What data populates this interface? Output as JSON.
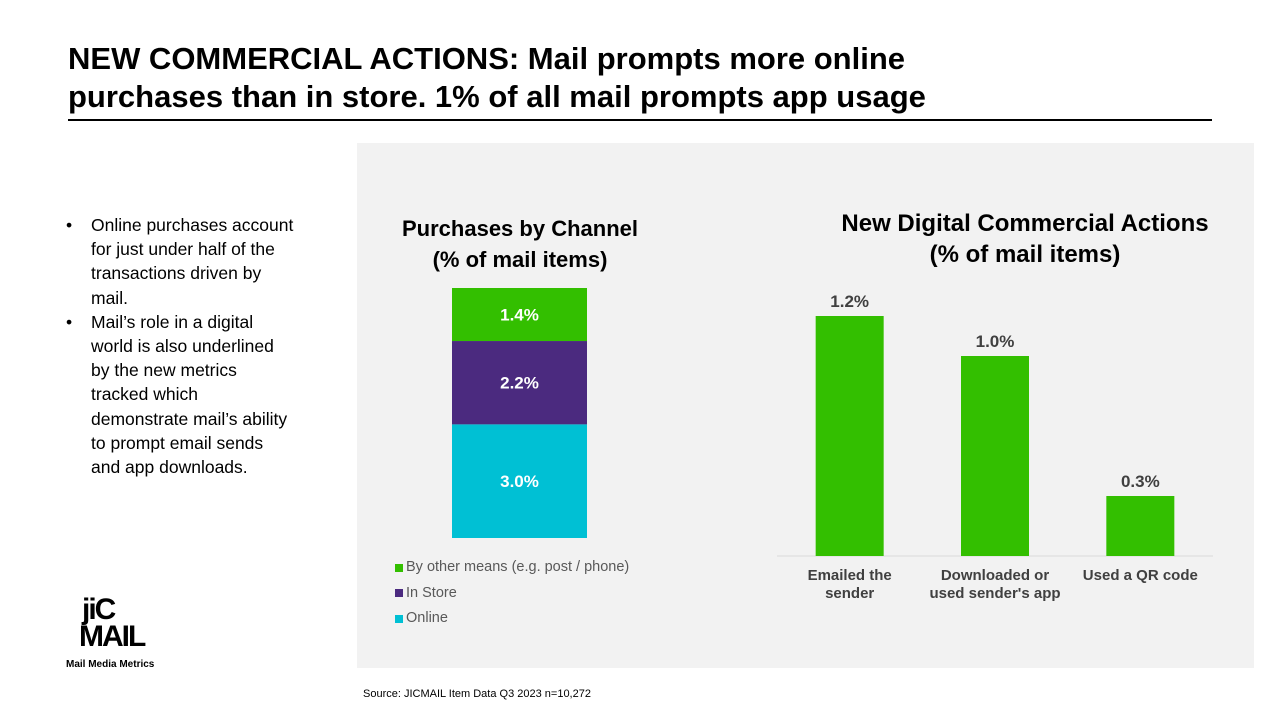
{
  "slide": {
    "title_line1": "NEW COMMERCIAL ACTIONS: Mail prompts more online",
    "title_line2": "purchases than in store. 1% of all mail prompts app usage",
    "bullets": [
      "Online purchases account for just under half of the transactions driven by mail.",
      "Mail’s role in a digital world is also underlined by the new metrics tracked which demonstrate mail’s ability to prompt email sends and app downloads."
    ],
    "bullet_glyph": "•",
    "source": "Source: JICMAIL Item Data Q3 2023 n=10,272"
  },
  "logo": {
    "line1": "jiC",
    "line2": "MAIL",
    "tagline": "Mail Media Metrics"
  },
  "colors": {
    "panel": "#f2f2f2",
    "green": "#33bf00",
    "purple": "#4b2a7f",
    "cyan": "#00c0d4"
  },
  "chart_data": [
    {
      "type": "bar",
      "stacked": true,
      "title_line1": "Purchases by Channel",
      "title_line2": "(% of mail items)",
      "categories": [
        ""
      ],
      "series": [
        {
          "name": "Online",
          "values": [
            3.0
          ],
          "label": "3.0%",
          "color": "#00c0d4"
        },
        {
          "name": "In Store",
          "values": [
            2.2
          ],
          "label": "2.2%",
          "color": "#4b2a7f"
        },
        {
          "name": "By other means (e.g. post / phone)",
          "values": [
            1.4
          ],
          "label": "1.4%",
          "color": "#33bf00"
        }
      ],
      "legend_order": [
        "By other means (e.g. post / phone)",
        "In Store",
        "Online"
      ],
      "legend_position": "bottom",
      "ylim": [
        0,
        6.6
      ],
      "grid": false
    },
    {
      "type": "bar",
      "title_line1": "New Digital Commercial Actions",
      "title_line2": "(% of mail items)",
      "categories": [
        [
          "Emailed the",
          "sender"
        ],
        [
          "Downloaded or",
          "used sender's app"
        ],
        [
          "Used a QR code"
        ]
      ],
      "values": [
        1.2,
        1.0,
        0.3
      ],
      "labels": [
        "1.2%",
        "1.0%",
        "0.3%"
      ],
      "color": "#33bf00",
      "ylim": [
        0,
        1.3
      ],
      "grid": false
    }
  ]
}
